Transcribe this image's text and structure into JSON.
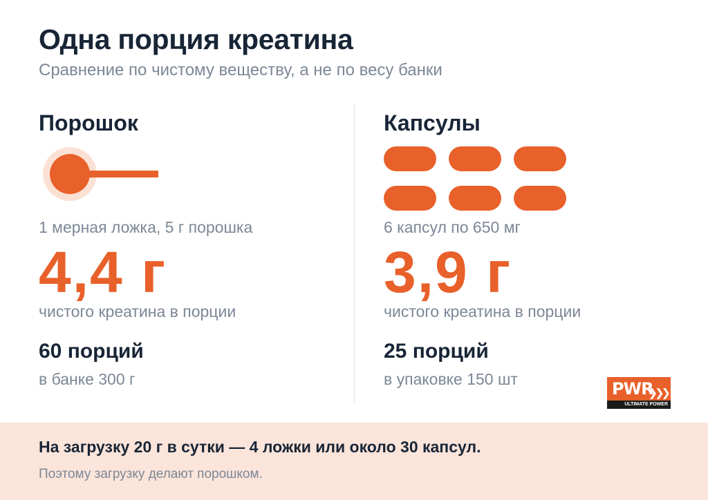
{
  "header": {
    "title": "Одна порция креатина",
    "subtitle": "Сравнение по чистому веществу, а не по весу банки"
  },
  "powder": {
    "title": "Порошок",
    "icon": "measuring-scoop-icon",
    "description": "1 мерная ложка, 5 г порошка",
    "value": "4,4 г",
    "value_caption": "чистого креатина в порции",
    "servings": "60 порций",
    "servings_sub": "в банке 300 г"
  },
  "capsules": {
    "title": "Капсулы",
    "icon": "capsule-icon",
    "icon_count": 6,
    "description": "6 капсул по 650 мг",
    "value": "3,9 г",
    "value_caption": "чистого креатина в порции",
    "servings": "25 порций",
    "servings_sub": "в упаковке 150 шт"
  },
  "logo": {
    "name": "PWR",
    "tagline": "ULTIMATE POWER"
  },
  "footer": {
    "main": "На загрузку 20 г в сутки — 4 ложки или около 30 капсул.",
    "sub": "Поэтому загрузку делают порошком."
  },
  "colors": {
    "accent": "#e8602a",
    "accent_light": "#fbe1d4",
    "heading": "#182536",
    "muted": "#7c8796",
    "footer_bg": "#fbe4da"
  }
}
